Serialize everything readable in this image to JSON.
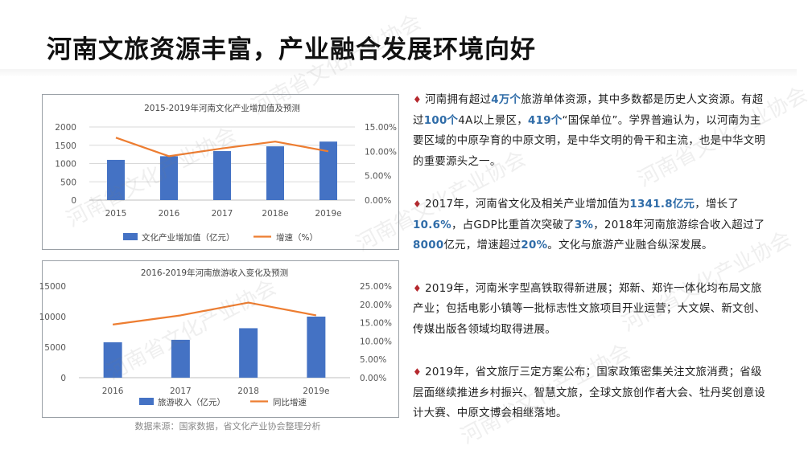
{
  "title": "河南文旅资源丰富，产业融合发展环境向好",
  "source": "数据来源：国家数据，省文化产业协会整理分析",
  "watermark": "河南省文化产业协会",
  "colors": {
    "bar": "#4472c4",
    "line": "#ed7d31",
    "bullet": "#b5282d",
    "highlight": "#2f6ca8"
  },
  "chart_data": [
    {
      "type": "bar",
      "title": "2015-2019年河南文化产业增加值及预测",
      "categories": [
        "2015",
        "2016",
        "2017",
        "2018e",
        "2019e"
      ],
      "y_ticks": [
        "2000",
        "1500",
        "1000",
        "500",
        "0"
      ],
      "y2_ticks": [
        "15.00%",
        "10.00%",
        "5.00%",
        "0.00%"
      ],
      "ylim": [
        0,
        2000
      ],
      "y2lim": [
        0,
        15
      ],
      "grid": true,
      "legend_position": "bottom",
      "series": [
        {
          "name": "文化产业增加值（亿元）",
          "kind": "bar",
          "axis": "left",
          "values": [
            1100,
            1200,
            1340,
            1470,
            1600
          ]
        },
        {
          "name": "增速（%）",
          "kind": "line",
          "axis": "right",
          "values": [
            12.8,
            9.0,
            10.6,
            12.0,
            10.0
          ]
        }
      ]
    },
    {
      "type": "bar",
      "title": "2016-2019年河南旅游收入变化及预测",
      "categories": [
        "2016",
        "2017",
        "2018",
        "2019e"
      ],
      "y_ticks": [
        "15000",
        "10000",
        "5000",
        "0"
      ],
      "y2_ticks": [
        "25.00%",
        "20.00%",
        "15.00%",
        "10.00%",
        "5.00%",
        "0.00%"
      ],
      "ylim": [
        0,
        15000
      ],
      "y2lim": [
        0,
        25
      ],
      "grid": false,
      "legend_position": "bottom",
      "series": [
        {
          "name": "旅游收入（亿元）",
          "kind": "bar",
          "axis": "left",
          "values": [
            5800,
            6200,
            8100,
            10000
          ]
        },
        {
          "name": "同比增速",
          "kind": "line",
          "axis": "right",
          "values": [
            14.5,
            17.0,
            20.5,
            17.0
          ]
        }
      ]
    }
  ],
  "paragraphs": [
    [
      {
        "t": "河南拥有超过"
      },
      {
        "t": "4万个",
        "hl": true
      },
      {
        "t": "旅游单体资源，其中多数都是历史人文资源。有超过"
      },
      {
        "t": "100个",
        "hl": true
      },
      {
        "t": "4A以上景区，"
      },
      {
        "t": "419个",
        "hl": true
      },
      {
        "t": "“国保单位”。学界普遍认为，以河南为主要区域的中原孕育的中原文明，是中华文明的骨干和主流，也是中华文明的重要源头之一。"
      }
    ],
    [
      {
        "t": "2017年，河南省文化及相关产业增加值为"
      },
      {
        "t": "1341.8亿元",
        "hl": true
      },
      {
        "t": "，增长了"
      },
      {
        "t": "10.6%",
        "hl": true
      },
      {
        "t": "，占GDP比重首次突破了"
      },
      {
        "t": "3%",
        "hl": true
      },
      {
        "t": "，2018年河南旅游综合收入超过了"
      },
      {
        "t": "8000",
        "hl": true
      },
      {
        "t": "亿元，增速超过"
      },
      {
        "t": "20%",
        "hl": true
      },
      {
        "t": "。文化与旅游产业融合纵深发展。"
      }
    ],
    [
      {
        "t": "2019年，河南米字型高铁取得新进展；郑新、郑许一体化均布局文旅产业；包括电影小镇等一批标志性文旅项目开业运营；大文娱、新文创、传媒出版各领域均取得进展。"
      }
    ],
    [
      {
        "t": "2019年，省文旅厅三定方案公布；国家政策密集关注文旅消费；省级层面继续推进乡村振兴、智慧文旅，全球文旅创作者大会、牡丹奖创意设计大赛、中原文博会相继落地。"
      }
    ]
  ]
}
